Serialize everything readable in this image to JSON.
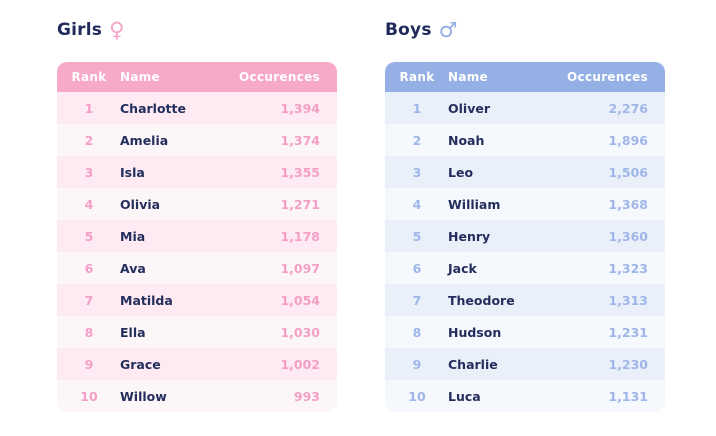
{
  "page": {
    "background": "#ffffff",
    "title_color": "#1f2a5a",
    "name_text_color": "#242e5c"
  },
  "chart_data": [
    {
      "type": "table",
      "title": "Girls",
      "symbol_icon": "female-sign",
      "symbol_glyph": "♀",
      "columns": [
        "Rank",
        "Name",
        "Occurences"
      ],
      "theme": {
        "header_bg": "#f7a9c9",
        "accent": "#f49fc6",
        "row_odd_bg": "#fdeaf2",
        "row_even_bg": "#fdf6f9",
        "symbol_color": "#f5a3c7"
      },
      "rows": [
        {
          "rank": "1",
          "name": "Charlotte",
          "occurrences": "1,394"
        },
        {
          "rank": "2",
          "name": "Amelia",
          "occurrences": "1,374"
        },
        {
          "rank": "3",
          "name": "Isla",
          "occurrences": "1,355"
        },
        {
          "rank": "4",
          "name": "Olivia",
          "occurrences": "1,271"
        },
        {
          "rank": "5",
          "name": "Mia",
          "occurrences": "1,178"
        },
        {
          "rank": "6",
          "name": "Ava",
          "occurrences": "1,097"
        },
        {
          "rank": "7",
          "name": "Matilda",
          "occurrences": "1,054"
        },
        {
          "rank": "8",
          "name": "Ella",
          "occurrences": "1,030"
        },
        {
          "rank": "9",
          "name": "Grace",
          "occurrences": "1,002"
        },
        {
          "rank": "10",
          "name": "Willow",
          "occurrences": "993"
        }
      ]
    },
    {
      "type": "table",
      "title": "Boys",
      "symbol_icon": "male-sign",
      "symbol_glyph": "♂",
      "columns": [
        "Rank",
        "Name",
        "Occurences"
      ],
      "theme": {
        "header_bg": "#94b0e4",
        "accent": "#9fb6e9",
        "row_odd_bg": "#eaf0fa",
        "row_even_bg": "#f5f8fd",
        "symbol_color": "#93aee4"
      },
      "rows": [
        {
          "rank": "1",
          "name": "Oliver",
          "occurrences": "2,276"
        },
        {
          "rank": "2",
          "name": "Noah",
          "occurrences": "1,896"
        },
        {
          "rank": "3",
          "name": "Leo",
          "occurrences": "1,506"
        },
        {
          "rank": "4",
          "name": "William",
          "occurrences": "1,368"
        },
        {
          "rank": "5",
          "name": "Henry",
          "occurrences": "1,360"
        },
        {
          "rank": "6",
          "name": "Jack",
          "occurrences": "1,323"
        },
        {
          "rank": "7",
          "name": "Theodore",
          "occurrences": "1,313"
        },
        {
          "rank": "8",
          "name": "Hudson",
          "occurrences": "1,231"
        },
        {
          "rank": "9",
          "name": "Charlie",
          "occurrences": "1,230"
        },
        {
          "rank": "10",
          "name": "Luca",
          "occurrences": "1,131"
        }
      ]
    }
  ]
}
